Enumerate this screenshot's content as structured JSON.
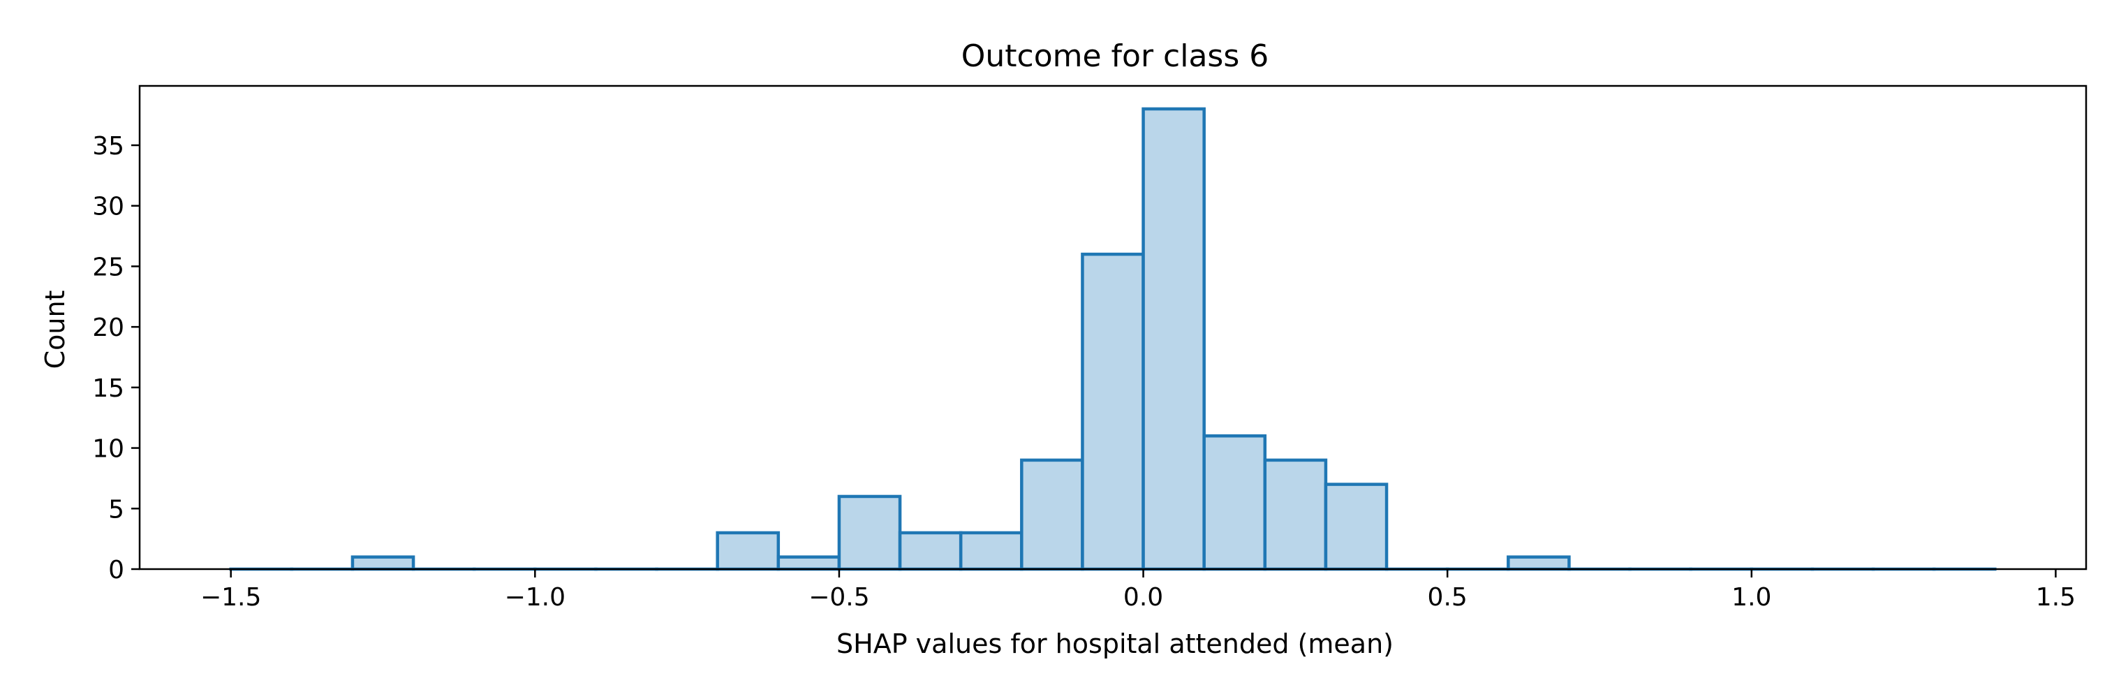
{
  "chart_data": {
    "type": "bar",
    "title": "Outcome for class 6",
    "xlabel": "SHAP values for hospital attended (mean)",
    "ylabel": "Count",
    "xlim": [
      -1.65,
      1.55
    ],
    "ylim": [
      0,
      39.9
    ],
    "xticks": [
      -1.5,
      -1.0,
      -0.5,
      0.0,
      0.5,
      1.0,
      1.5
    ],
    "xtick_labels": [
      "−1.5",
      "−1.0",
      "−0.5",
      "0.0",
      "0.5",
      "1.0",
      "1.5"
    ],
    "yticks": [
      0,
      5,
      10,
      15,
      20,
      25,
      30,
      35
    ],
    "ytick_labels": [
      "0",
      "5",
      "10",
      "15",
      "20",
      "25",
      "30",
      "35"
    ],
    "bin_width": 0.1,
    "bin_edges": [
      -1.5,
      -1.4,
      -1.3,
      -1.2,
      -1.1,
      -1.0,
      -0.9,
      -0.8,
      -0.7,
      -0.6,
      -0.5,
      -0.4,
      -0.3,
      -0.2,
      -0.1,
      0.0,
      0.1,
      0.2,
      0.3,
      0.4,
      0.5,
      0.6,
      0.7,
      0.8,
      0.9,
      1.0,
      1.1,
      1.2,
      1.3,
      1.4
    ],
    "counts": [
      0,
      0,
      1,
      0,
      0,
      0,
      0,
      0,
      3,
      1,
      6,
      3,
      3,
      9,
      26,
      38,
      11,
      9,
      7,
      0,
      0,
      1,
      0,
      0,
      0,
      0,
      0,
      0,
      0
    ],
    "grid": false,
    "colors": {
      "fill": "#bad6ea",
      "edge": "#1f77b4",
      "axes": "#000000"
    }
  }
}
